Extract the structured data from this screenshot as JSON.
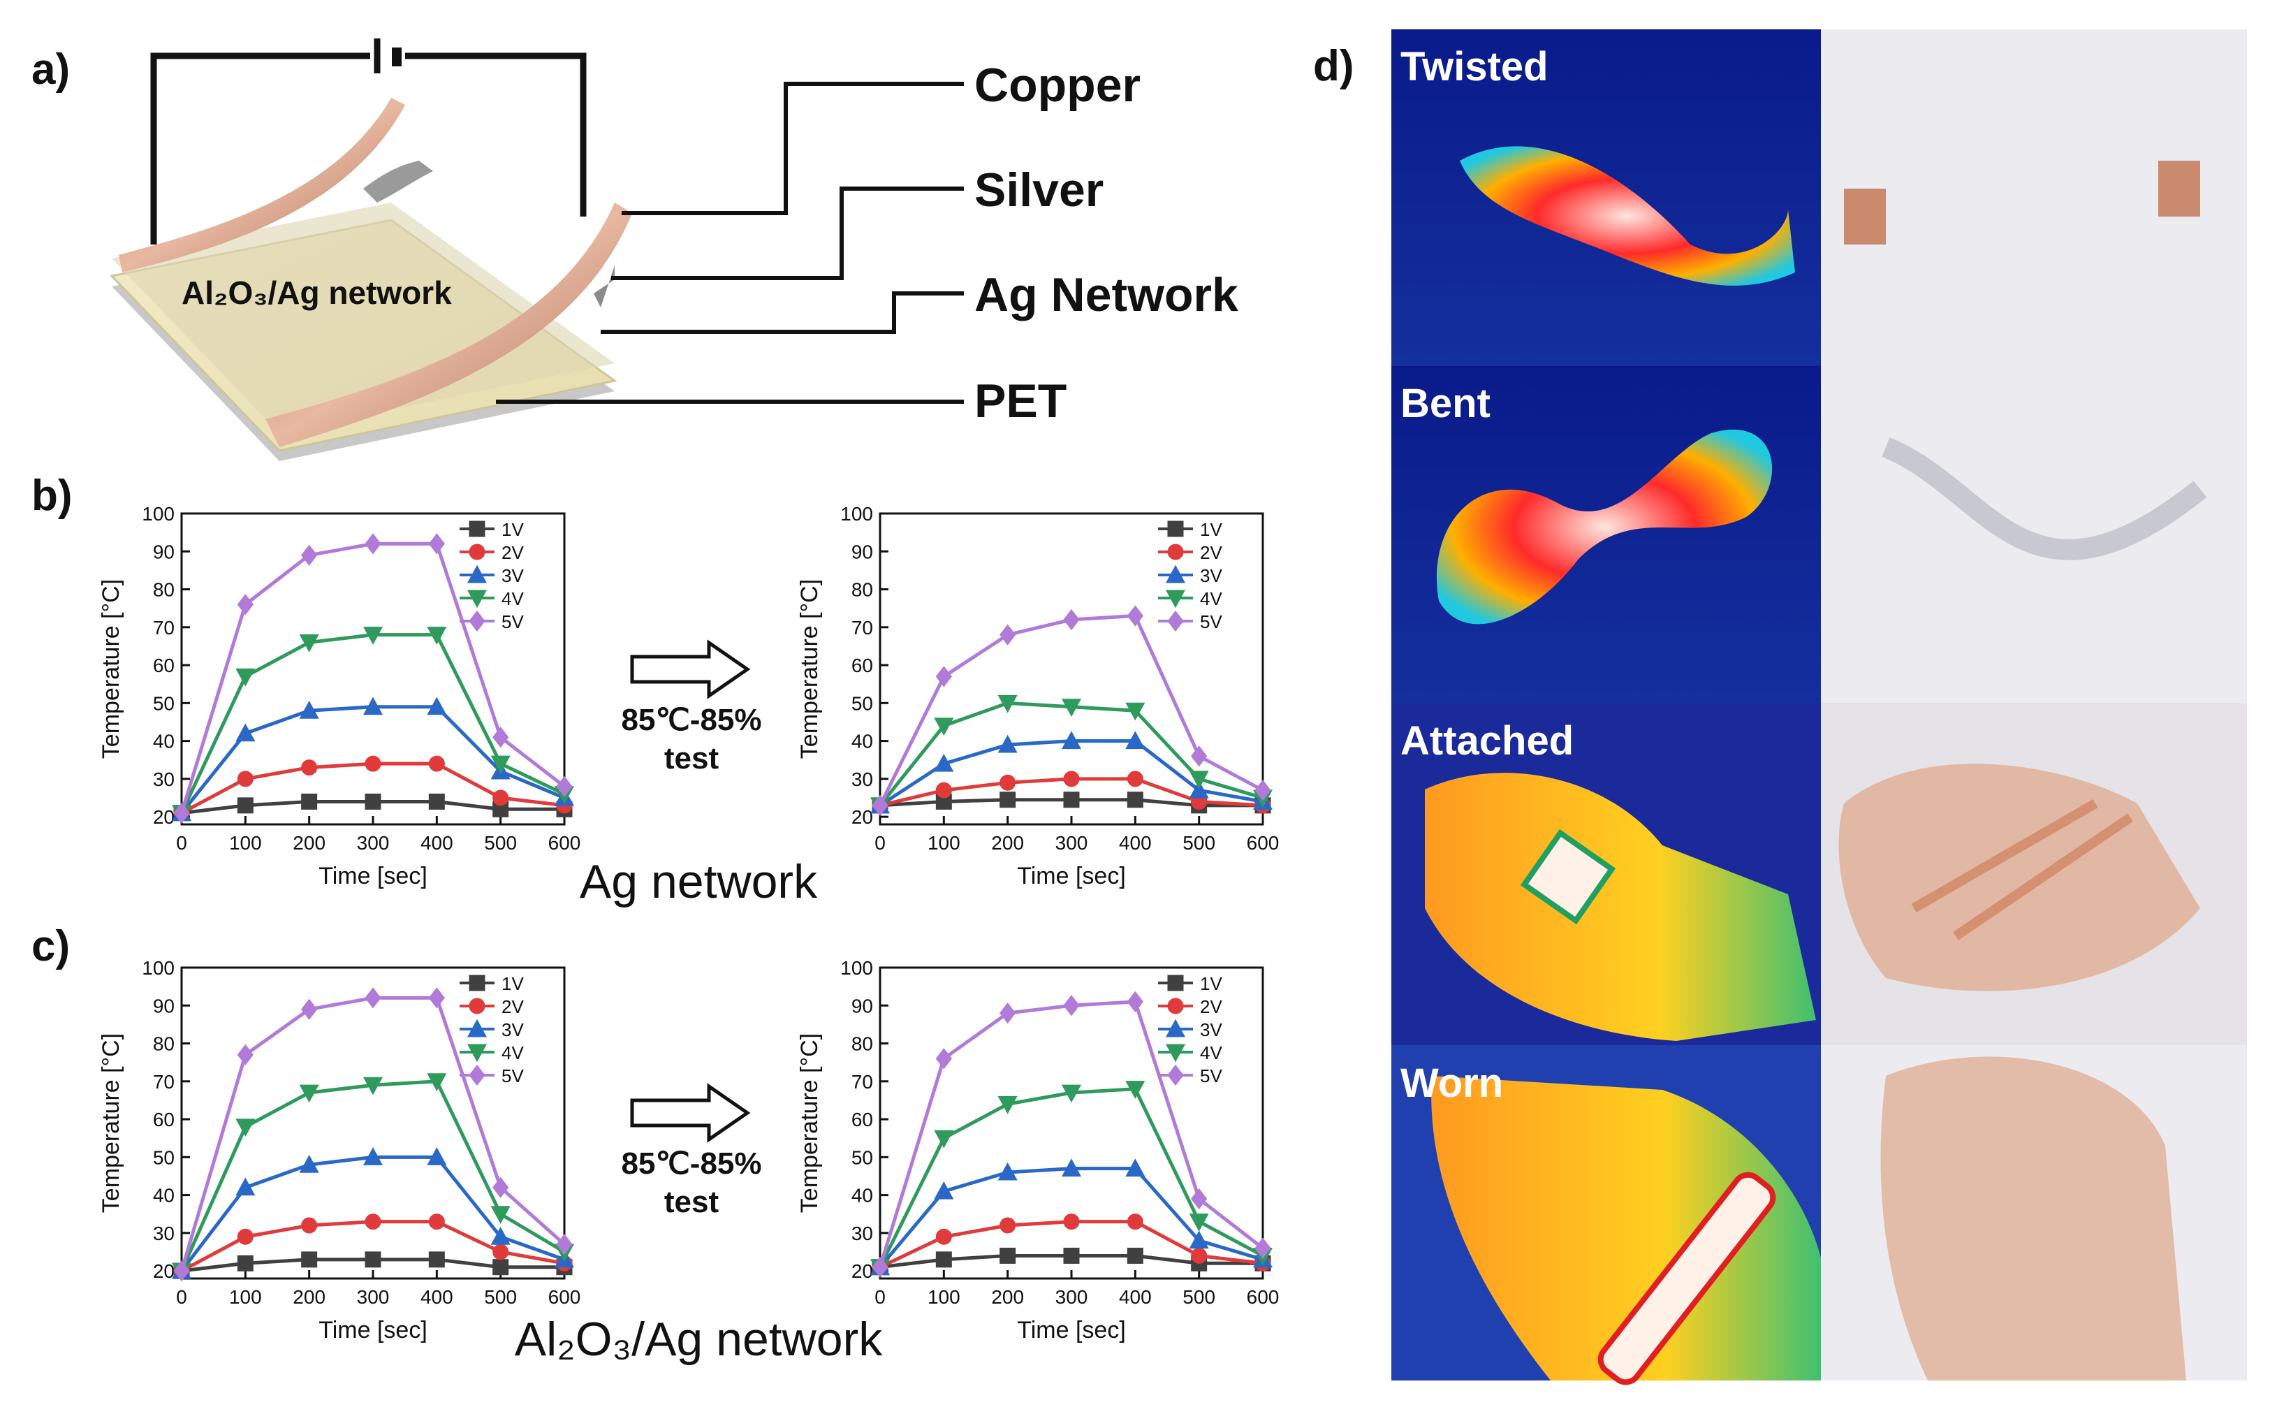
{
  "panel_labels": [
    "a)",
    "b)",
    "c)",
    "d)"
  ],
  "diagram": {
    "layer_labels": [
      "Copper",
      "Silver",
      "Ag Network",
      "PET"
    ],
    "overlay_label": "Al₂O₃/Ag network"
  },
  "arrow_labels": [
    [
      "85℃-85%",
      "test"
    ],
    [
      "85℃-85%",
      "test"
    ]
  ],
  "row_captions": [
    "Ag network",
    "Al₂O₃/Ag network"
  ],
  "photo_labels": [
    "Twisted",
    "Bent",
    "Attached",
    "Worn"
  ],
  "chart_data": [
    {
      "type": "line",
      "xlabel": "Time [sec]",
      "ylabel": "Temperature [°C]",
      "x": [
        0,
        100,
        200,
        300,
        400,
        500,
        600
      ],
      "xlim": [
        0,
        600
      ],
      "ylim": [
        18,
        100
      ],
      "xticks": [
        0,
        100,
        200,
        300,
        400,
        500,
        600
      ],
      "yticks": [
        20,
        30,
        40,
        50,
        60,
        70,
        80,
        90,
        100
      ],
      "series": [
        {
          "name": "1V",
          "color": "#404040",
          "marker": "square",
          "values": [
            21,
            23,
            24,
            24,
            24,
            22,
            22
          ]
        },
        {
          "name": "2V",
          "color": "#e03a3a",
          "marker": "circle",
          "values": [
            21,
            30,
            33,
            34,
            34,
            25,
            23
          ]
        },
        {
          "name": "3V",
          "color": "#2a68c8",
          "marker": "triangle-up",
          "values": [
            21,
            42,
            48,
            49,
            49,
            32,
            25
          ]
        },
        {
          "name": "4V",
          "color": "#2e9a5c",
          "marker": "triangle-down",
          "values": [
            21,
            57,
            66,
            68,
            68,
            34,
            26
          ]
        },
        {
          "name": "5V",
          "color": "#b27ad8",
          "marker": "diamond",
          "values": [
            21,
            76,
            89,
            92,
            92,
            41,
            28
          ]
        }
      ]
    },
    {
      "type": "line",
      "xlabel": "Time [sec]",
      "ylabel": "Temperature [°C]",
      "x": [
        0,
        100,
        200,
        300,
        400,
        500,
        600
      ],
      "xlim": [
        0,
        600
      ],
      "ylim": [
        18,
        100
      ],
      "xticks": [
        0,
        100,
        200,
        300,
        400,
        500,
        600
      ],
      "yticks": [
        20,
        30,
        40,
        50,
        60,
        70,
        80,
        90,
        100
      ],
      "series": [
        {
          "name": "1V",
          "color": "#404040",
          "marker": "square",
          "values": [
            23,
            24,
            24.5,
            24.5,
            24.5,
            23,
            23
          ]
        },
        {
          "name": "2V",
          "color": "#e03a3a",
          "marker": "circle",
          "values": [
            23,
            27,
            29,
            30,
            30,
            24,
            23
          ]
        },
        {
          "name": "3V",
          "color": "#2a68c8",
          "marker": "triangle-up",
          "values": [
            23,
            34,
            39,
            40,
            40,
            27,
            24
          ]
        },
        {
          "name": "4V",
          "color": "#2e9a5c",
          "marker": "triangle-down",
          "values": [
            23,
            44,
            50,
            49,
            48,
            30,
            25
          ]
        },
        {
          "name": "5V",
          "color": "#b27ad8",
          "marker": "diamond",
          "values": [
            23,
            57,
            68,
            72,
            73,
            36,
            27
          ]
        }
      ]
    },
    {
      "type": "line",
      "xlabel": "Time [sec]",
      "ylabel": "Temperature [°C]",
      "x": [
        0,
        100,
        200,
        300,
        400,
        500,
        600
      ],
      "xlim": [
        0,
        600
      ],
      "ylim": [
        18,
        100
      ],
      "xticks": [
        0,
        100,
        200,
        300,
        400,
        500,
        600
      ],
      "yticks": [
        20,
        30,
        40,
        50,
        60,
        70,
        80,
        90,
        100
      ],
      "series": [
        {
          "name": "1V",
          "color": "#404040",
          "marker": "square",
          "values": [
            20,
            22,
            23,
            23,
            23,
            21,
            21
          ]
        },
        {
          "name": "2V",
          "color": "#e03a3a",
          "marker": "circle",
          "values": [
            20,
            29,
            32,
            33,
            33,
            25,
            22
          ]
        },
        {
          "name": "3V",
          "color": "#2a68c8",
          "marker": "triangle-up",
          "values": [
            20,
            42,
            48,
            50,
            50,
            29,
            23
          ]
        },
        {
          "name": "4V",
          "color": "#2e9a5c",
          "marker": "triangle-down",
          "values": [
            20,
            58,
            67,
            69,
            70,
            35,
            25
          ]
        },
        {
          "name": "5V",
          "color": "#b27ad8",
          "marker": "diamond",
          "values": [
            20,
            77,
            89,
            92,
            92,
            42,
            27
          ]
        }
      ]
    },
    {
      "type": "line",
      "xlabel": "Time [sec]",
      "ylabel": "Temperature [°C]",
      "x": [
        0,
        100,
        200,
        300,
        400,
        500,
        600
      ],
      "xlim": [
        0,
        600
      ],
      "ylim": [
        18,
        100
      ],
      "xticks": [
        0,
        100,
        200,
        300,
        400,
        500,
        600
      ],
      "yticks": [
        20,
        30,
        40,
        50,
        60,
        70,
        80,
        90,
        100
      ],
      "series": [
        {
          "name": "1V",
          "color": "#404040",
          "marker": "square",
          "values": [
            21,
            23,
            24,
            24,
            24,
            22,
            22
          ]
        },
        {
          "name": "2V",
          "color": "#e03a3a",
          "marker": "circle",
          "values": [
            21,
            29,
            32,
            33,
            33,
            24,
            22
          ]
        },
        {
          "name": "3V",
          "color": "#2a68c8",
          "marker": "triangle-up",
          "values": [
            21,
            41,
            46,
            47,
            47,
            28,
            23
          ]
        },
        {
          "name": "4V",
          "color": "#2e9a5c",
          "marker": "triangle-down",
          "values": [
            21,
            55,
            64,
            67,
            68,
            33,
            24
          ]
        },
        {
          "name": "5V",
          "color": "#b27ad8",
          "marker": "diamond",
          "values": [
            21,
            76,
            88,
            90,
            91,
            39,
            26
          ]
        }
      ]
    }
  ]
}
